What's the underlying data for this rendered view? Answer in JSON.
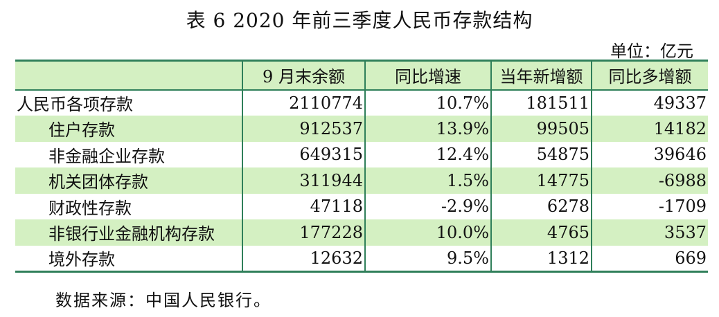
{
  "title": "表 6   2020 年前三季度人民币存款结构",
  "unit": "单位：亿元",
  "table": {
    "headers": [
      "",
      "9 月末余额",
      "同比增速",
      "当年新增额",
      "同比多增额"
    ],
    "rows": [
      {
        "name": "人民币各项存款",
        "balance": "2110774",
        "growth": "10.7%",
        "new_added": "181511",
        "yoy_more": "49337"
      },
      {
        "name": "住户存款",
        "balance": "912537",
        "growth": "13.9%",
        "new_added": "99505",
        "yoy_more": "14182"
      },
      {
        "name": "非金融企业存款",
        "balance": "649315",
        "growth": "12.4%",
        "new_added": "54875",
        "yoy_more": "39646"
      },
      {
        "name": "机关团体存款",
        "balance": "311944",
        "growth": "1.5%",
        "new_added": "14775",
        "yoy_more": "-6988"
      },
      {
        "name": "财政性存款",
        "balance": "47118",
        "growth": "-2.9%",
        "new_added": "6278",
        "yoy_more": "-1709"
      },
      {
        "name": "非银行业金融机构存款",
        "balance": "177228",
        "growth": "10.0%",
        "new_added": "4765",
        "yoy_more": "3537"
      },
      {
        "name": "境外存款",
        "balance": "12632",
        "growth": "9.5%",
        "new_added": "1312",
        "yoy_more": "669"
      }
    ]
  },
  "source": "数据来源：中国人民银行。",
  "colors": {
    "header_fill": "#d4f0c2",
    "rule": "#2f7f5a"
  }
}
